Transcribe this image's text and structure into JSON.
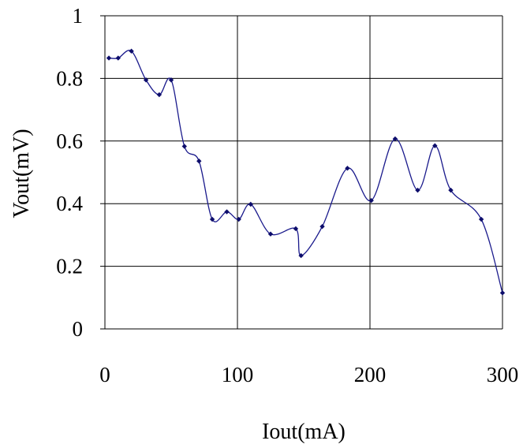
{
  "chart_data": {
    "type": "line",
    "title": "",
    "xlabel": "Iout(mA)",
    "ylabel": "Vout(mV)",
    "xlim": [
      0,
      300
    ],
    "ylim": [
      0,
      1
    ],
    "x_ticks": [
      0,
      100,
      200,
      300
    ],
    "x_tick_labels": [
      "0",
      "100",
      "200",
      "300"
    ],
    "y_ticks": [
      0,
      0.2,
      0.4,
      0.6,
      0.8,
      1
    ],
    "y_tick_labels": [
      "0",
      "0.2",
      "0.4",
      "0.6",
      "0.8",
      "1"
    ],
    "grid": true,
    "legend": "none",
    "smooth": true,
    "color": "#1a1a8c",
    "marker": "diamond",
    "series": [
      {
        "x": [
          3,
          10,
          20,
          31,
          41,
          50,
          60,
          71,
          81,
          92,
          101,
          110,
          125,
          144,
          148,
          164,
          183,
          201,
          219,
          236,
          249,
          261,
          284,
          300
        ],
        "y": [
          0.865,
          0.865,
          0.887,
          0.795,
          0.748,
          0.795,
          0.583,
          0.536,
          0.35,
          0.374,
          0.35,
          0.398,
          0.303,
          0.32,
          0.234,
          0.327,
          0.513,
          0.41,
          0.607,
          0.443,
          0.585,
          0.443,
          0.35,
          0.115
        ]
      }
    ]
  }
}
